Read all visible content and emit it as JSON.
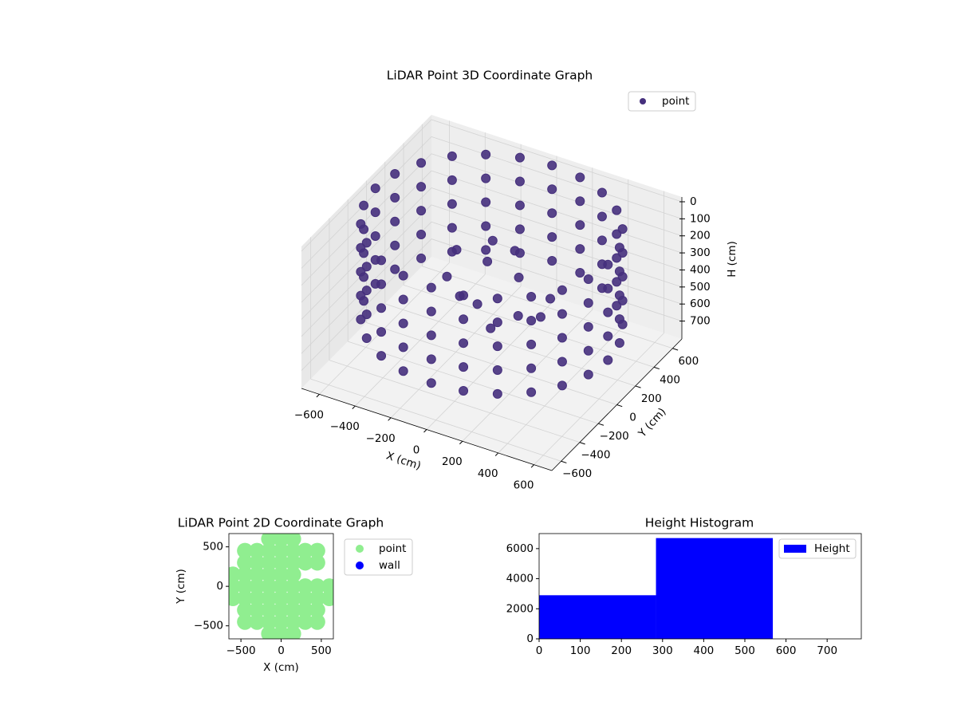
{
  "chart_data": [
    {
      "type": "scatter3d",
      "title": "LiDAR Point 3D Coordinate Graph",
      "xlabel": "X (cm)",
      "ylabel": "Y (cm)",
      "zlabel": "H (cm)",
      "xlim": [
        -700,
        700
      ],
      "ylim": [
        -700,
        700
      ],
      "zlim": [
        805,
        -28
      ],
      "xticks": [
        {
          "value": -600,
          "label": "−600"
        },
        {
          "value": -400,
          "label": "−400"
        },
        {
          "value": -200,
          "label": "−200"
        },
        0,
        200,
        400,
        600
      ],
      "yticks": [
        {
          "value": -600,
          "label": "−600"
        },
        {
          "value": -400,
          "label": "−400"
        },
        {
          "value": -200,
          "label": "−200"
        },
        0,
        200,
        400,
        600
      ],
      "zticks": [
        0,
        100,
        200,
        300,
        400,
        500,
        600,
        700
      ],
      "grid": true,
      "legend": "upper right",
      "series": [
        {
          "name": "point",
          "color": "#46307d",
          "x": [
            650,
            628,
            563,
            460,
            325,
            168,
            0,
            -168,
            -325,
            -460,
            -563,
            -628,
            -650,
            -628,
            -563,
            -460,
            -325,
            -168,
            0,
            168,
            325,
            460,
            563,
            628,
            650,
            628,
            563,
            460,
            325,
            168,
            0,
            -168,
            -325,
            -460,
            -563,
            -628,
            -650,
            -628,
            -563,
            -460,
            -325,
            -168,
            0,
            168,
            325,
            460,
            563,
            628,
            650,
            628,
            563,
            460,
            325,
            168,
            0,
            -168,
            -325,
            -460,
            -563,
            -628,
            -650,
            -628,
            -563,
            -460,
            -325,
            -168,
            0,
            168,
            325,
            460,
            563,
            628,
            650,
            628,
            563,
            460,
            325,
            168,
            0,
            -168,
            -325,
            -460,
            -563,
            -628,
            -650,
            -628,
            -563,
            -460,
            -325,
            -168,
            0,
            168,
            325,
            460,
            563,
            628,
            650,
            628,
            563,
            460,
            325,
            168,
            0,
            -168,
            -325,
            -460,
            -563,
            -628,
            -650,
            -628,
            -563,
            -460,
            -325,
            -168,
            0,
            168,
            325,
            460,
            563,
            628,
            -300,
            -150,
            0,
            100,
            200,
            -250,
            -100,
            50,
            250,
            -50,
            150,
            300
          ],
          "y": [
            0,
            168,
            325,
            460,
            563,
            628,
            650,
            628,
            563,
            460,
            325,
            168,
            0,
            -168,
            -325,
            -460,
            -563,
            -628,
            -650,
            -628,
            -563,
            -460,
            -325,
            -168,
            0,
            168,
            325,
            460,
            563,
            628,
            650,
            628,
            563,
            460,
            325,
            168,
            0,
            -168,
            -325,
            -460,
            -563,
            -628,
            -650,
            -628,
            -563,
            -460,
            -325,
            -168,
            0,
            168,
            325,
            460,
            563,
            628,
            650,
            628,
            563,
            460,
            325,
            168,
            0,
            -168,
            -325,
            -460,
            -563,
            -628,
            -650,
            -628,
            -563,
            -460,
            -325,
            -168,
            0,
            168,
            325,
            460,
            563,
            628,
            650,
            628,
            563,
            460,
            325,
            168,
            0,
            -168,
            -325,
            -460,
            -563,
            -628,
            -650,
            -628,
            -563,
            -460,
            -325,
            -168,
            0,
            168,
            325,
            460,
            563,
            628,
            650,
            628,
            563,
            460,
            325,
            168,
            0,
            -168,
            -325,
            -460,
            -563,
            -628,
            -650,
            -628,
            -563,
            -460,
            -325,
            -168,
            200,
            300,
            250,
            100,
            -100,
            0,
            -150,
            -250,
            150,
            50,
            -300,
            -50
          ],
          "z": [
            0,
            0,
            0,
            0,
            0,
            0,
            0,
            0,
            0,
            0,
            0,
            0,
            0,
            0,
            0,
            0,
            0,
            0,
            0,
            0,
            0,
            0,
            0,
            0,
            140,
            140,
            140,
            140,
            140,
            140,
            140,
            140,
            140,
            140,
            140,
            140,
            140,
            140,
            140,
            140,
            140,
            140,
            140,
            140,
            140,
            140,
            140,
            140,
            280,
            280,
            280,
            280,
            280,
            280,
            280,
            280,
            280,
            280,
            280,
            280,
            280,
            280,
            280,
            280,
            280,
            280,
            280,
            280,
            280,
            280,
            280,
            280,
            420,
            420,
            420,
            420,
            420,
            420,
            420,
            420,
            420,
            420,
            420,
            420,
            420,
            420,
            420,
            420,
            420,
            420,
            420,
            420,
            420,
            420,
            420,
            420,
            560,
            560,
            560,
            560,
            560,
            560,
            560,
            560,
            560,
            560,
            560,
            560,
            560,
            560,
            560,
            560,
            560,
            560,
            560,
            560,
            560,
            560,
            560,
            560,
            350,
            300,
            280,
            320,
            400,
            380,
            360,
            300,
            420,
            250,
            380,
            400
          ]
        }
      ]
    },
    {
      "type": "scatter",
      "title": "LiDAR Point 2D Coordinate Graph",
      "xlabel": "X (cm)",
      "ylabel": "Y (cm)",
      "xlim": [
        -650,
        650
      ],
      "ylim": [
        -665,
        668
      ],
      "xticks": [
        {
          "value": -500,
          "label": "−500"
        },
        0,
        500
      ],
      "yticks": [
        {
          "value": -500,
          "label": "−500"
        },
        0,
        500
      ],
      "legend": "outside right",
      "series": [
        {
          "name": "point",
          "color": "#90ee90",
          "x": [
            -150,
            0,
            150,
            -450,
            -300,
            -150,
            0,
            150,
            300,
            450,
            -450,
            -300,
            -150,
            0,
            150,
            300,
            450,
            -600,
            -450,
            -300,
            -150,
            0,
            150,
            300,
            450,
            600,
            -600,
            -450,
            -300,
            -150,
            0,
            150,
            300,
            450,
            600,
            -600,
            -450,
            -300,
            -150,
            0,
            150,
            -450,
            -300,
            -150,
            0,
            150,
            300,
            450,
            -450,
            -300,
            -150,
            0,
            150,
            300,
            450,
            -150,
            0,
            150
          ],
          "y": [
            -600,
            -600,
            -600,
            -450,
            -450,
            -450,
            -450,
            -450,
            -450,
            -450,
            -300,
            -300,
            -300,
            -300,
            -300,
            -300,
            -300,
            -150,
            -150,
            -150,
            -150,
            -150,
            -150,
            -150,
            -150,
            -150,
            0,
            0,
            0,
            0,
            0,
            0,
            0,
            0,
            0,
            150,
            150,
            150,
            150,
            150,
            150,
            300,
            300,
            300,
            300,
            300,
            300,
            300,
            450,
            450,
            450,
            450,
            450,
            450,
            450,
            600,
            600,
            600
          ]
        },
        {
          "name": "wall",
          "color": "#0000ff",
          "x": [],
          "y": []
        }
      ]
    },
    {
      "type": "histogram",
      "title": "Height Histogram",
      "xlim": [
        0,
        783
      ],
      "ylim": [
        0,
        7000
      ],
      "xticks": [
        0,
        100,
        200,
        300,
        400,
        500,
        600,
        700
      ],
      "yticks": [
        0,
        2000,
        4000,
        6000
      ],
      "legend": "upper right",
      "series": [
        {
          "name": "Height",
          "color": "#0000ff",
          "bins": [
            0,
            284,
            568
          ],
          "values": [
            2900,
            6700
          ]
        }
      ]
    }
  ]
}
